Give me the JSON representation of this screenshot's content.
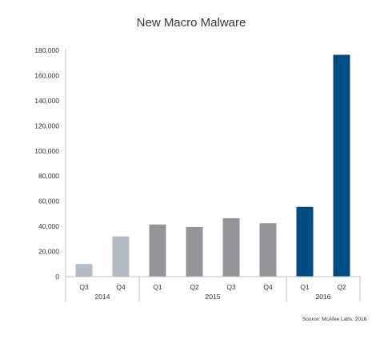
{
  "chart_data": {
    "type": "bar",
    "title": "New Macro Malware",
    "categories": [
      "Q3",
      "Q4",
      "Q1",
      "Q2",
      "Q3",
      "Q4",
      "Q1",
      "Q2"
    ],
    "groups": [
      {
        "label": "2014",
        "count": 2
      },
      {
        "label": "2015",
        "count": 4
      },
      {
        "label": "2016",
        "count": 2
      }
    ],
    "values": [
      10000,
      32000,
      41500,
      39500,
      46500,
      42500,
      55500,
      176500
    ],
    "bar_colors": [
      "#b3bbc3",
      "#b3bbc3",
      "#939598",
      "#939598",
      "#939598",
      "#939598",
      "#004c84",
      "#004c84"
    ],
    "yticks": [
      "0",
      "20,000",
      "40,000",
      "60,000",
      "80,000",
      "100,000",
      "120,000",
      "140,000",
      "160,000",
      "180,000"
    ],
    "ylim": [
      0,
      180000
    ],
    "grid": false,
    "xlabel": "",
    "ylabel": ""
  },
  "source": "Source: McAfee Labs, 2016."
}
